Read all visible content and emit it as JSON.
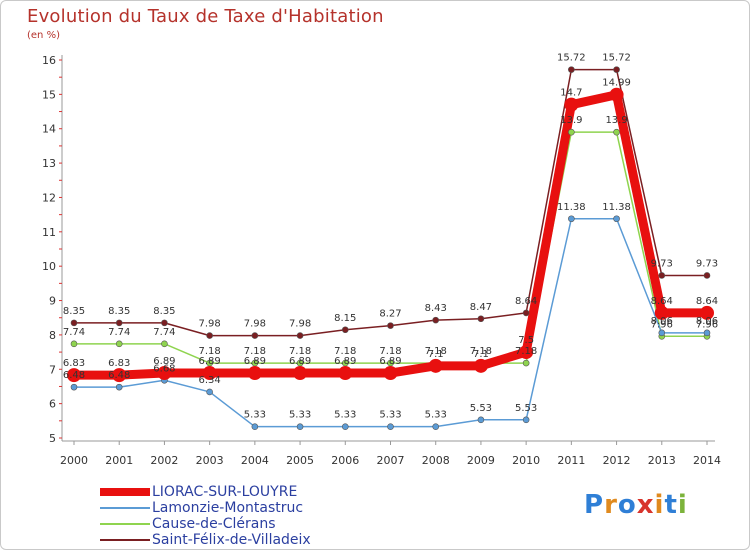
{
  "title": "Evolution du Taux de Taxe d'Habitation",
  "unit_label": "(en %)",
  "logo": {
    "letters": [
      "P",
      "r",
      "o",
      "x",
      "i",
      "t",
      "i"
    ],
    "colors": [
      "#2f7fd6",
      "#e08a1e",
      "#2f7fd6",
      "#d8342c",
      "#e08a1e",
      "#2f7fd6",
      "#7cb33b"
    ]
  },
  "chart_data": {
    "type": "line",
    "title": "Evolution du Taux de Taxe d'Habitation",
    "ylabel": "(en %)",
    "xlabel": "",
    "x": [
      "2000",
      "2001",
      "2002",
      "2003",
      "2004",
      "2005",
      "2006",
      "2007",
      "2008",
      "2009",
      "2010",
      "2011",
      "2012",
      "2013",
      "2014"
    ],
    "ylim": [
      5,
      16
    ],
    "yticks": [
      "5",
      "6",
      "7",
      "8",
      "9",
      "10",
      "11",
      "12",
      "13",
      "14",
      "15",
      "16"
    ],
    "grid": false,
    "legend_position": "bottom-left",
    "series": [
      {
        "name": "LIORAC-SUR-LOUYRE",
        "color": "#e8100f",
        "values": [
          6.83,
          6.83,
          6.89,
          6.89,
          6.89,
          6.89,
          6.89,
          6.89,
          7.1,
          7.1,
          7.5,
          14.7,
          14.99,
          8.64,
          8.64
        ],
        "labels": [
          "6.83",
          "6.83",
          "6.89",
          "6.89",
          "6.89",
          "6.89",
          "6.89",
          "6.89",
          "7.1",
          "7.1",
          "7.5",
          "14.7",
          "14.99",
          "8.64",
          "8.64"
        ]
      },
      {
        "name": "Lamonzie-Montastruc",
        "color": "#5b9bd5",
        "values": [
          6.48,
          6.48,
          6.68,
          6.34,
          5.33,
          5.33,
          5.33,
          5.33,
          5.33,
          5.53,
          5.53,
          11.38,
          11.38,
          8.06,
          8.06
        ],
        "labels": [
          "6.48",
          "6.48",
          "6.68",
          "6.34",
          "5.33",
          "5.33",
          "5.33",
          "5.33",
          "5.33",
          "5.53",
          "5.53",
          "11.38",
          "11.38",
          "8.06",
          "8.06"
        ]
      },
      {
        "name": "Cause-de-Clérans",
        "color": "#8fd44f",
        "values": [
          7.74,
          7.74,
          7.74,
          7.18,
          7.18,
          7.18,
          7.18,
          7.18,
          7.18,
          7.18,
          7.18,
          13.9,
          13.9,
          7.96,
          7.96
        ],
        "labels": [
          "7.74",
          "7.74",
          "7.74",
          "7.18",
          "7.18",
          "7.18",
          "7.18",
          "7.18",
          "7.18",
          "7.18",
          "7.18",
          "13.9",
          "13.9",
          "7.96",
          "7.96"
        ]
      },
      {
        "name": "Saint-Félix-de-Villadeix",
        "color": "#7a1f22",
        "values": [
          8.35,
          8.35,
          8.35,
          7.98,
          7.98,
          7.98,
          8.15,
          8.27,
          8.43,
          8.47,
          8.64,
          15.72,
          15.72,
          9.73,
          9.73
        ],
        "labels": [
          "8.35",
          "8.35",
          "8.35",
          "7.98",
          "7.98",
          "7.98",
          "8.15",
          "8.27",
          "8.43",
          "8.47",
          "8.64",
          "15.72",
          "15.72",
          "9.73",
          "9.73"
        ]
      }
    ]
  }
}
